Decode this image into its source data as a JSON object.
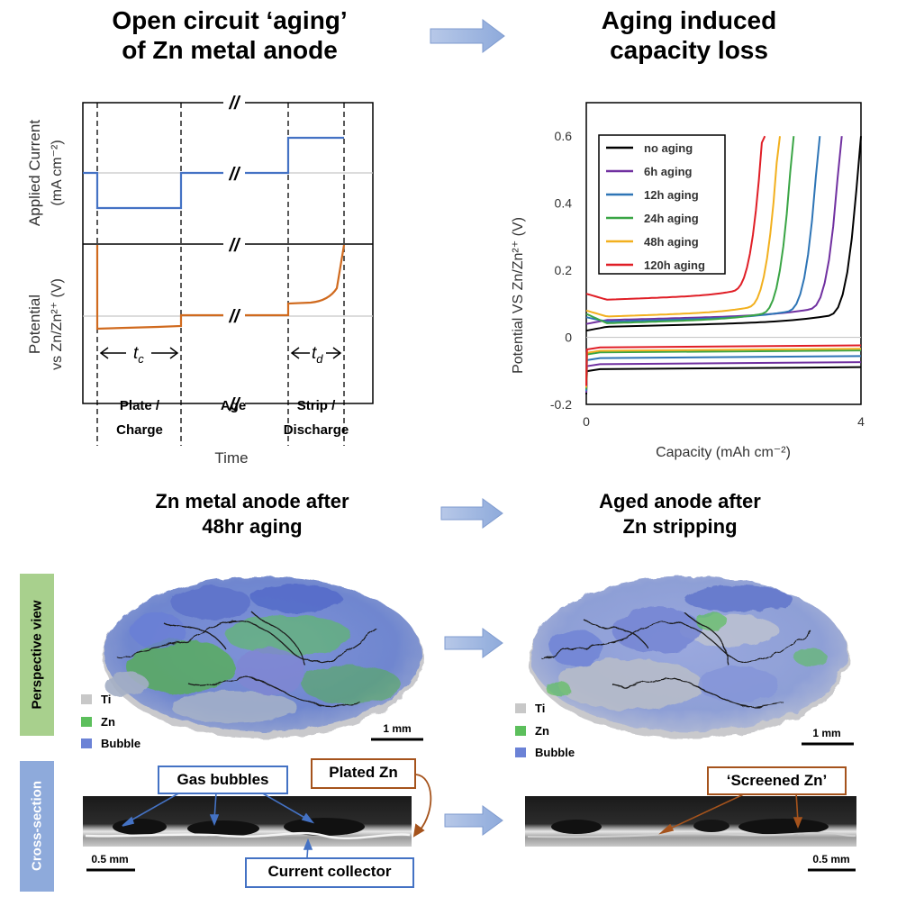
{
  "titles": {
    "aging": "Open circuit ‘aging’ of Zn metal anode",
    "aging_line1": "Open circuit ‘aging’",
    "aging_line2": "of Zn metal anode",
    "loss_line1": "Aging induced",
    "loss_line2": "capacity loss",
    "after48_line1": "Zn metal anode after",
    "after48_line2": "48hr aging",
    "stripped_line1": "Aged anode after",
    "stripped_line2": "Zn stripping"
  },
  "protocol": {
    "ylabel_top_1": "Applied Current",
    "ylabel_top_2": "(mA cm⁻²)",
    "ylabel_bottom_1": "Potential",
    "ylabel_bottom_2": "vs Zn/Zn²⁺ (V)",
    "tc": "t",
    "tc_sub": "c",
    "td": "t",
    "td_sub": "d",
    "break_mark": "//",
    "stage_plate_1": "Plate /",
    "stage_plate_2": "Charge",
    "stage_age": "Age",
    "stage_strip_1": "Strip /",
    "stage_strip_2": "Discharge",
    "xlabel": "Time"
  },
  "chart_data": {
    "type": "line",
    "title": "",
    "xlabel": "Capacity (mAh cm⁻²)",
    "ylabel": "Potential VS Zn/Zn²⁺ (V)",
    "xlim": [
      0,
      4
    ],
    "ylim": [
      -0.2,
      0.7
    ],
    "xticks": [
      "0",
      "4"
    ],
    "yticks": [
      "0.6",
      "0.4",
      "0.2",
      "0",
      "-0.2"
    ],
    "legend_position": "top-left",
    "series": [
      {
        "name": "no aging",
        "color": "#000000",
        "plate": -0.095,
        "strip_start": 0.02,
        "strip_flat": 0.03,
        "end_capacity": 4.0
      },
      {
        "name": "6h aging",
        "color": "#7030a0",
        "plate": -0.08,
        "strip_start": 0.04,
        "strip_flat": 0.05,
        "end_capacity": 3.72
      },
      {
        "name": "12h aging",
        "color": "#2e75b6",
        "plate": -0.062,
        "strip_start": 0.06,
        "strip_flat": 0.045,
        "end_capacity": 3.4
      },
      {
        "name": "24h aging",
        "color": "#3aa545",
        "plate": -0.045,
        "strip_start": 0.07,
        "strip_flat": 0.04,
        "end_capacity": 3.02
      },
      {
        "name": "48h aging",
        "color": "#f2b01e",
        "plate": -0.04,
        "strip_start": 0.08,
        "strip_flat": 0.06,
        "end_capacity": 2.82
      },
      {
        "name": "120h aging",
        "color": "#e01e26",
        "plate": -0.03,
        "strip_start": 0.13,
        "strip_flat": 0.11,
        "end_capacity": 2.6
      }
    ]
  },
  "views": {
    "perspective_label": "Perspective view",
    "cross_section_label": "Cross-section",
    "legend": [
      {
        "name": "Ti",
        "color": "#c8c8c8"
      },
      {
        "name": "Zn",
        "color": "#5cbf5c"
      },
      {
        "name": "Bubble",
        "color": "#6b82d6"
      }
    ],
    "scale_1mm": "1 mm",
    "scale_05mm": "0.5 mm",
    "gas_bubbles": "Gas bubbles",
    "plated_zn": "Plated Zn",
    "current_collector": "Current collector",
    "screened_zn": "‘Screened Zn’"
  }
}
